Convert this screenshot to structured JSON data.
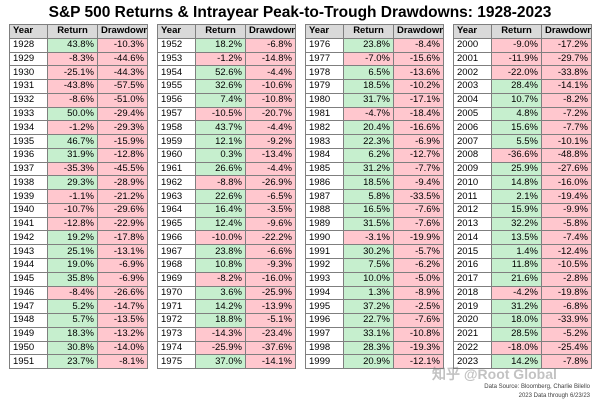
{
  "title": "S&P 500 Returns & Intrayear Peak-to-Trough Drawdowns: 1928-2023",
  "headers": {
    "year": "Year",
    "return": "Return",
    "drawdown": "Drawdown"
  },
  "colors": {
    "positive": "#c6efce",
    "negative": "#ffc7ce",
    "header": "#d9d9d9"
  },
  "columns": [
    {
      "rows": [
        [
          "1928",
          "43.8%",
          "-10.3%"
        ],
        [
          "1929",
          "-8.3%",
          "-44.6%"
        ],
        [
          "1930",
          "-25.1%",
          "-44.3%"
        ],
        [
          "1931",
          "-43.8%",
          "-57.5%"
        ],
        [
          "1932",
          "-8.6%",
          "-51.0%"
        ],
        [
          "1933",
          "50.0%",
          "-29.4%"
        ],
        [
          "1934",
          "-1.2%",
          "-29.3%"
        ],
        [
          "1935",
          "46.7%",
          "-15.9%"
        ],
        [
          "1936",
          "31.9%",
          "-12.8%"
        ],
        [
          "1937",
          "-35.3%",
          "-45.5%"
        ],
        [
          "1938",
          "29.3%",
          "-28.9%"
        ],
        [
          "1939",
          "-1.1%",
          "-21.2%"
        ],
        [
          "1940",
          "-10.7%",
          "-29.6%"
        ],
        [
          "1941",
          "-12.8%",
          "-22.9%"
        ],
        [
          "1942",
          "19.2%",
          "-17.8%"
        ],
        [
          "1943",
          "25.1%",
          "-13.1%"
        ],
        [
          "1944",
          "19.0%",
          "-6.9%"
        ],
        [
          "1945",
          "35.8%",
          "-6.9%"
        ],
        [
          "1946",
          "-8.4%",
          "-26.6%"
        ],
        [
          "1947",
          "5.2%",
          "-14.7%"
        ],
        [
          "1948",
          "5.7%",
          "-13.5%"
        ],
        [
          "1949",
          "18.3%",
          "-13.2%"
        ],
        [
          "1950",
          "30.8%",
          "-14.0%"
        ],
        [
          "1951",
          "23.7%",
          "-8.1%"
        ]
      ]
    },
    {
      "rows": [
        [
          "1952",
          "18.2%",
          "-6.8%"
        ],
        [
          "1953",
          "-1.2%",
          "-14.8%"
        ],
        [
          "1954",
          "52.6%",
          "-4.4%"
        ],
        [
          "1955",
          "32.6%",
          "-10.6%"
        ],
        [
          "1956",
          "7.4%",
          "-10.8%"
        ],
        [
          "1957",
          "-10.5%",
          "-20.7%"
        ],
        [
          "1958",
          "43.7%",
          "-4.4%"
        ],
        [
          "1959",
          "12.1%",
          "-9.2%"
        ],
        [
          "1960",
          "0.3%",
          "-13.4%"
        ],
        [
          "1961",
          "26.6%",
          "-4.4%"
        ],
        [
          "1962",
          "-8.8%",
          "-26.9%"
        ],
        [
          "1963",
          "22.6%",
          "-6.5%"
        ],
        [
          "1964",
          "16.4%",
          "-3.5%"
        ],
        [
          "1965",
          "12.4%",
          "-9.6%"
        ],
        [
          "1966",
          "-10.0%",
          "-22.2%"
        ],
        [
          "1967",
          "23.8%",
          "-6.6%"
        ],
        [
          "1968",
          "10.8%",
          "-9.3%"
        ],
        [
          "1969",
          "-8.2%",
          "-16.0%"
        ],
        [
          "1970",
          "3.6%",
          "-25.9%"
        ],
        [
          "1971",
          "14.2%",
          "-13.9%"
        ],
        [
          "1972",
          "18.8%",
          "-5.1%"
        ],
        [
          "1973",
          "-14.3%",
          "-23.4%"
        ],
        [
          "1974",
          "-25.9%",
          "-37.6%"
        ],
        [
          "1975",
          "37.0%",
          "-14.1%"
        ]
      ]
    },
    {
      "rows": [
        [
          "1976",
          "23.8%",
          "-8.4%"
        ],
        [
          "1977",
          "-7.0%",
          "-15.6%"
        ],
        [
          "1978",
          "6.5%",
          "-13.6%"
        ],
        [
          "1979",
          "18.5%",
          "-10.2%"
        ],
        [
          "1980",
          "31.7%",
          "-17.1%"
        ],
        [
          "1981",
          "-4.7%",
          "-18.4%"
        ],
        [
          "1982",
          "20.4%",
          "-16.6%"
        ],
        [
          "1983",
          "22.3%",
          "-6.9%"
        ],
        [
          "1984",
          "6.2%",
          "-12.7%"
        ],
        [
          "1985",
          "31.2%",
          "-7.7%"
        ],
        [
          "1986",
          "18.5%",
          "-9.4%"
        ],
        [
          "1987",
          "5.8%",
          "-33.5%"
        ],
        [
          "1988",
          "16.5%",
          "-7.6%"
        ],
        [
          "1989",
          "31.5%",
          "-7.6%"
        ],
        [
          "1990",
          "-3.1%",
          "-19.9%"
        ],
        [
          "1991",
          "30.2%",
          "-5.7%"
        ],
        [
          "1992",
          "7.5%",
          "-6.2%"
        ],
        [
          "1993",
          "10.0%",
          "-5.0%"
        ],
        [
          "1994",
          "1.3%",
          "-8.9%"
        ],
        [
          "1995",
          "37.2%",
          "-2.5%"
        ],
        [
          "1996",
          "22.7%",
          "-7.6%"
        ],
        [
          "1997",
          "33.1%",
          "-10.8%"
        ],
        [
          "1998",
          "28.3%",
          "-19.3%"
        ],
        [
          "1999",
          "20.9%",
          "-12.1%"
        ]
      ]
    },
    {
      "rows": [
        [
          "2000",
          "-9.0%",
          "-17.2%"
        ],
        [
          "2001",
          "-11.9%",
          "-29.7%"
        ],
        [
          "2002",
          "-22.0%",
          "-33.8%"
        ],
        [
          "2003",
          "28.4%",
          "-14.1%"
        ],
        [
          "2004",
          "10.7%",
          "-8.2%"
        ],
        [
          "2005",
          "4.8%",
          "-7.2%"
        ],
        [
          "2006",
          "15.6%",
          "-7.7%"
        ],
        [
          "2007",
          "5.5%",
          "-10.1%"
        ],
        [
          "2008",
          "-36.6%",
          "-48.8%"
        ],
        [
          "2009",
          "25.9%",
          "-27.6%"
        ],
        [
          "2010",
          "14.8%",
          "-16.0%"
        ],
        [
          "2011",
          "2.1%",
          "-19.4%"
        ],
        [
          "2012",
          "15.9%",
          "-9.9%"
        ],
        [
          "2013",
          "32.2%",
          "-5.8%"
        ],
        [
          "2014",
          "13.5%",
          "-7.4%"
        ],
        [
          "2015",
          "1.4%",
          "-12.4%"
        ],
        [
          "2016",
          "11.8%",
          "-10.5%"
        ],
        [
          "2017",
          "21.6%",
          "-2.8%"
        ],
        [
          "2018",
          "-4.2%",
          "-19.8%"
        ],
        [
          "2019",
          "31.2%",
          "-6.8%"
        ],
        [
          "2020",
          "18.0%",
          "-33.9%"
        ],
        [
          "2021",
          "28.5%",
          "-5.2%"
        ],
        [
          "2022",
          "-18.0%",
          "-25.4%"
        ],
        [
          "2023",
          "14.2%",
          "-7.8%"
        ]
      ]
    }
  ],
  "notes": {
    "source": "Data Source: Bloomberg, Charlie Bilello",
    "data_through": "2023 Data through 6/23/23"
  },
  "watermark": "知乎 @Root Global"
}
